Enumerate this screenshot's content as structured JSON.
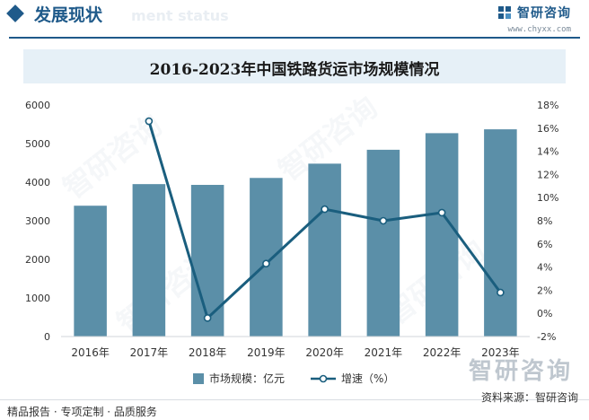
{
  "header": {
    "title": "发展现状",
    "ghost_subtitle": "ment status",
    "brand_name": "智研咨询",
    "brand_site": "www.chyxx.com"
  },
  "chart_data": {
    "type": "bar+line",
    "title": "2016-2023年中国铁路货运市场规模情况",
    "categories": [
      "2016年",
      "2017年",
      "2018年",
      "2019年",
      "2020年",
      "2021年",
      "2022年",
      "2023年"
    ],
    "series": [
      {
        "name": "市场规模：亿元",
        "kind": "bar",
        "axis": "left",
        "color": "#5b8fa8",
        "values": [
          3390,
          3950,
          3930,
          4110,
          4480,
          4840,
          5270,
          5370
        ]
      },
      {
        "name": "增速（%）",
        "kind": "line",
        "axis": "right",
        "color": "#1a5e7e",
        "values": [
          null,
          16.6,
          -0.4,
          4.3,
          9.0,
          8.0,
          8.7,
          1.8
        ]
      }
    ],
    "y_left": {
      "min": 0,
      "max": 6000,
      "ticks": [
        "0",
        "1000",
        "2000",
        "3000",
        "4000",
        "5000",
        "6000"
      ]
    },
    "y_right": {
      "min": -2,
      "max": 18,
      "ticks": [
        "-2%",
        "0%",
        "2%",
        "4%",
        "6%",
        "8%",
        "10%",
        "12%",
        "14%",
        "16%",
        "18%"
      ]
    },
    "legend": [
      "市场规模：亿元",
      "增速（%）"
    ],
    "source": "资料来源：智研咨询"
  },
  "footer": {
    "left": "精品报告 · 专项定制 · 品质服务",
    "watermark_logo": "智研咨询"
  }
}
